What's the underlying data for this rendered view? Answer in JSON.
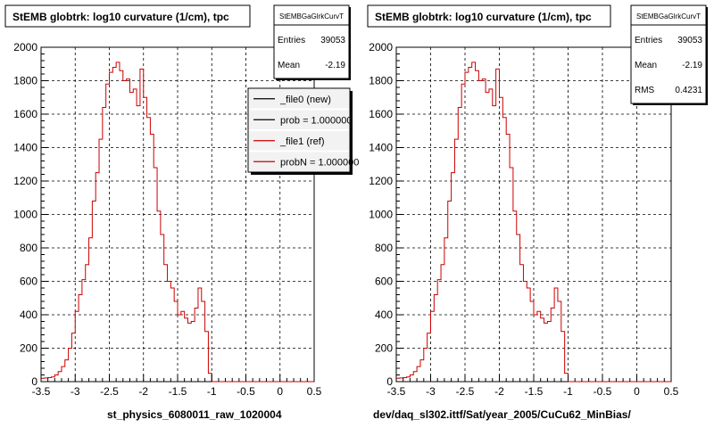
{
  "chart_data": [
    {
      "type": "histogram",
      "title": "StEMB globtrk: log10 curvature (1/cm), tpc",
      "xlabel": "st_physics_6080011_raw_1020004",
      "xlim": [
        -3.5,
        0.5
      ],
      "ylim": [
        0,
        2000
      ],
      "xticks": [
        "-3.5",
        "-3",
        "-2.5",
        "-2",
        "-1.5",
        "-1",
        "-0.5",
        "0",
        "0.5"
      ],
      "yticks": [
        "0",
        "200",
        "400",
        "600",
        "800",
        "1000",
        "1200",
        "1400",
        "1600",
        "1800",
        "2000"
      ],
      "grid": true,
      "bin_start": -3.5,
      "bin_width": 0.05,
      "values": [
        20,
        22,
        24,
        28,
        40,
        60,
        90,
        130,
        200,
        290,
        420,
        520,
        610,
        700,
        860,
        1080,
        1250,
        1450,
        1640,
        1780,
        1850,
        1880,
        1910,
        1860,
        1800,
        1810,
        1730,
        1750,
        1650,
        1870,
        1700,
        1580,
        1480,
        1280,
        1020,
        880,
        700,
        600,
        560,
        480,
        400,
        420,
        380,
        350,
        360,
        440,
        560,
        480,
        300,
        50,
        0,
        0,
        0,
        0,
        0,
        0,
        0,
        0,
        0,
        0,
        0,
        0,
        0,
        0,
        0,
        0,
        0,
        0,
        0,
        0,
        0,
        0,
        0,
        0,
        0,
        0,
        0,
        0,
        0,
        0
      ],
      "series": [
        {
          "name": "_file0 (new)",
          "color": "#000000"
        },
        {
          "name": "_file1 (ref)",
          "color": "#cc0000"
        }
      ],
      "stats": {
        "name": "StEMBGaGlrkCurvT",
        "rows": [
          {
            "label": "Entries",
            "value": "39053"
          },
          {
            "label": "Mean",
            "value": "-2.19"
          }
        ]
      },
      "legend": {
        "position": "top-right",
        "rows": [
          "_file0 (new)",
          "prob = 1.000000",
          "_file1 (ref)",
          "probN = 1.000000"
        ]
      }
    },
    {
      "type": "histogram",
      "title": "StEMB globtrk: log10 curvature (1/cm), tpc",
      "xlabel": "dev/daq_sl302.ittf/Sat/year_2005/CuCu62_MinBias/",
      "xlim": [
        -3.5,
        0.5
      ],
      "ylim": [
        0,
        2000
      ],
      "xticks": [
        "-3.5",
        "-3",
        "-2.5",
        "-2",
        "-1.5",
        "-1",
        "-0.5",
        "0",
        "0.5"
      ],
      "yticks": [
        "0",
        "200",
        "400",
        "600",
        "800",
        "1000",
        "1200",
        "1400",
        "1600",
        "1800",
        "2000"
      ],
      "grid": true,
      "bin_start": -3.5,
      "bin_width": 0.05,
      "values": [
        20,
        22,
        24,
        28,
        40,
        60,
        90,
        130,
        200,
        290,
        420,
        520,
        610,
        700,
        860,
        1080,
        1250,
        1450,
        1640,
        1780,
        1850,
        1880,
        1910,
        1860,
        1800,
        1810,
        1730,
        1750,
        1650,
        1870,
        1700,
        1580,
        1480,
        1280,
        1020,
        880,
        700,
        600,
        560,
        480,
        400,
        420,
        380,
        350,
        360,
        440,
        560,
        480,
        300,
        50,
        0,
        0,
        0,
        0,
        0,
        0,
        0,
        0,
        0,
        0,
        0,
        0,
        0,
        0,
        0,
        0,
        0,
        0,
        0,
        0,
        0,
        0,
        0,
        0,
        0,
        0,
        0,
        0,
        0,
        0
      ],
      "series": [
        {
          "name": "",
          "color": "#cc0000"
        }
      ],
      "stats": {
        "name": "StEMBGaGlrkCurvT",
        "rows": [
          {
            "label": "Entries",
            "value": "39053"
          },
          {
            "label": "Mean",
            "value": "-2.19"
          },
          {
            "label": "RMS",
            "value": "0.4231"
          }
        ]
      }
    }
  ]
}
